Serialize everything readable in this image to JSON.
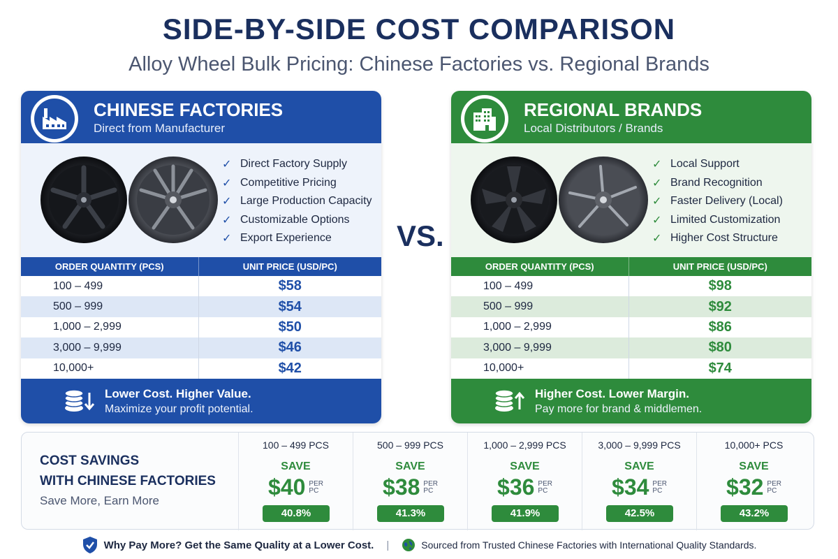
{
  "header": {
    "title": "SIDE-BY-SIDE COST COMPARISON",
    "subtitle": "Alloy Wheel Bulk Pricing: Chinese Factories vs. Regional Brands"
  },
  "vs_label": "VS.",
  "left": {
    "title": "CHINESE FACTORIES",
    "subtitle": "Direct from Manufacturer",
    "icon": "factory-icon",
    "accent": "#1f4fa8",
    "features": [
      "Direct Factory Supply",
      "Competitive Pricing",
      "Large Production Capacity",
      "Customizable Options",
      "Export Experience"
    ],
    "table_headers": [
      "ORDER QUANTITY (PCS)",
      "UNIT PRICE (USD/PC)"
    ],
    "rows": [
      {
        "qty": "100 – 499",
        "price": "$58"
      },
      {
        "qty": "500 – 999",
        "price": "$54"
      },
      {
        "qty": "1,000 – 2,999",
        "price": "$50"
      },
      {
        "qty": "3,000 – 9,999",
        "price": "$46"
      },
      {
        "qty": "10,000+",
        "price": "$42"
      }
    ],
    "footer_title": "Lower Cost. Higher Value.",
    "footer_sub": "Maximize your profit potential.",
    "footer_icon": "coins-down-icon"
  },
  "right": {
    "title": "REGIONAL BRANDS",
    "subtitle": "Local Distributors / Brands",
    "icon": "building-icon",
    "accent": "#2e8b3c",
    "features": [
      "Local Support",
      "Brand Recognition",
      "Faster Delivery (Local)",
      "Limited Customization",
      "Higher Cost Structure"
    ],
    "table_headers": [
      "ORDER QUANTITY (PCS)",
      "UNIT PRICE (USD/PC)"
    ],
    "rows": [
      {
        "qty": "100 – 499",
        "price": "$98"
      },
      {
        "qty": "500 – 999",
        "price": "$92"
      },
      {
        "qty": "1,000 – 2,999",
        "price": "$86"
      },
      {
        "qty": "3,000 – 9,999",
        "price": "$80"
      },
      {
        "qty": "10,000+",
        "price": "$74"
      }
    ],
    "footer_title": "Higher Cost. Lower Margin.",
    "footer_sub": "Pay more for brand & middlemen.",
    "footer_icon": "coins-up-icon"
  },
  "savings": {
    "title_line1": "COST SAVINGS",
    "title_line2": "WITH CHINESE FACTORIES",
    "subtitle": "Save More, Earn More",
    "save_label": "SAVE",
    "per_line1": "PER",
    "per_line2": "PC",
    "items": [
      {
        "qty": "100 – 499 PCS",
        "amount": "$40",
        "percent": "40.8%"
      },
      {
        "qty": "500 – 999 PCS",
        "amount": "$38",
        "percent": "41.3%"
      },
      {
        "qty": "1,000 – 2,999 PCS",
        "amount": "$36",
        "percent": "41.9%"
      },
      {
        "qty": "3,000 – 9,999 PCS",
        "amount": "$34",
        "percent": "42.5%"
      },
      {
        "qty": "10,000+ PCS",
        "amount": "$32",
        "percent": "43.2%"
      }
    ]
  },
  "footer": {
    "left_text": "Why Pay More? Get the Same Quality at a Lower Cost.",
    "separator": "|",
    "right_text": "Sourced from Trusted Chinese Factories with International Quality Standards.",
    "left_icon": "shield-check-icon",
    "right_icon": "globe-icon"
  }
}
